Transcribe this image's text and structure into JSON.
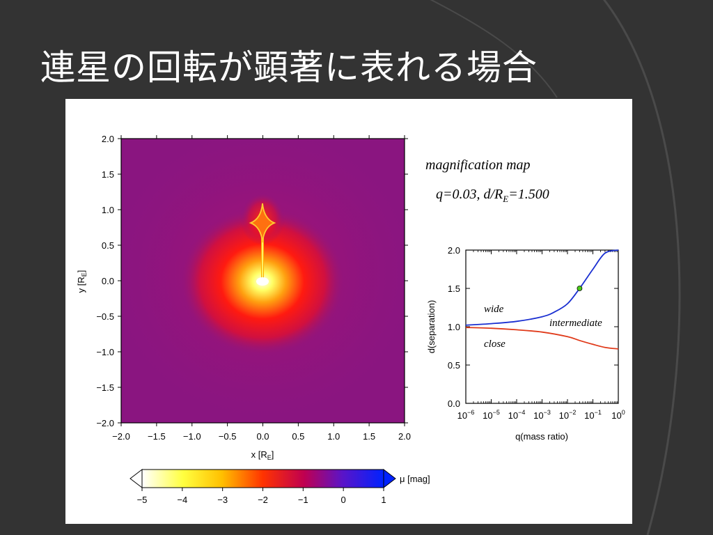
{
  "slide": {
    "title": "連星の回転が顕著に表れる場合",
    "colors": {
      "background": "#333333",
      "arc": "#4a4a4a",
      "panel": "#ffffff"
    }
  },
  "chart_data": [
    {
      "type": "heatmap",
      "xlabel_main": "x [R",
      "xlabel_sub": "E",
      "xlabel_close": "]",
      "ylabel_main": "y [R",
      "ylabel_sub": "E",
      "ylabel_close": "]",
      "xlim": [
        -2.0,
        2.0
      ],
      "ylim": [
        -2.0,
        2.0
      ],
      "xticks": [
        -2.0,
        -1.5,
        -1.0,
        -0.5,
        0.0,
        0.5,
        1.0,
        1.5,
        2.0
      ],
      "yticks": [
        -2.0,
        -1.5,
        -1.0,
        -0.5,
        0.0,
        0.5,
        1.0,
        1.5,
        2.0
      ],
      "xtick_labels": [
        "−2.0",
        "−1.5",
        "−1.0",
        "−0.5",
        "0.0",
        "0.5",
        "1.0",
        "1.5",
        "2.0"
      ],
      "ytick_labels": [
        "−2.0",
        "−1.5",
        "−1.0",
        "−0.5",
        "0.0",
        "0.5",
        "1.0",
        "1.5",
        "2.0"
      ],
      "annotations": [
        "magnification map"
      ],
      "params_prefix": "q=0.03, d/R",
      "params_sub": "E",
      "params_suffix": "=1.500",
      "features": {
        "central_peak": {
          "x": 0.0,
          "y": 0.0
        },
        "planetary_caustic_center": {
          "x": 0.0,
          "y": 0.83
        },
        "connecting_ridge": {
          "x": 0.0,
          "y_from": 0.0,
          "y_to": 0.78
        }
      },
      "colorbar": {
        "label": "μ [mag]",
        "range": [
          -5,
          1
        ],
        "ticks": [
          -5,
          -4,
          -3,
          -2,
          -1,
          0,
          1
        ],
        "tick_labels": [
          "−5",
          "−4",
          "−3",
          "−2",
          "−1",
          "0",
          "1"
        ],
        "colors": [
          "#ffffff",
          "#ffff00",
          "#ff8800",
          "#ff0000",
          "#b00066",
          "#3300dd",
          "#0022ff"
        ],
        "background_color": "#8a1580"
      }
    },
    {
      "type": "line",
      "xlabel": "q(mass ratio)",
      "ylabel": "d(separation)",
      "x_scale": "log",
      "xlim": [
        1e-06,
        1
      ],
      "ylim": [
        0.0,
        2.0
      ],
      "xticks": [
        -6,
        -5,
        -4,
        -3,
        -2,
        -1,
        0
      ],
      "yticks": [
        0.0,
        0.5,
        1.0,
        1.5,
        2.0
      ],
      "ytick_labels": [
        "0.0",
        "0.5",
        "1.0",
        "1.5",
        "2.0"
      ],
      "xtick_base": "10",
      "xtick_exps": [
        "−6",
        "−5",
        "−4",
        "−3",
        "−2",
        "−1",
        "0"
      ],
      "region_labels": [
        "wide",
        "intermediate",
        "close"
      ],
      "series": [
        {
          "color": "#1a2fd1",
          "x": [
            1e-06,
            1e-05,
            0.0001,
            0.001,
            0.003,
            0.01,
            0.03,
            0.1,
            0.3,
            1
          ],
          "y": [
            1.02,
            1.04,
            1.07,
            1.13,
            1.19,
            1.3,
            1.5,
            1.75,
            1.96,
            2.0
          ]
        },
        {
          "color": "#e03a1a",
          "x": [
            1e-06,
            1e-05,
            0.0001,
            0.001,
            0.01,
            0.03,
            0.1,
            0.3,
            1
          ],
          "y": [
            0.99,
            0.98,
            0.96,
            0.93,
            0.87,
            0.82,
            0.77,
            0.73,
            0.71
          ]
        }
      ],
      "marker": {
        "x": 0.03,
        "y": 1.5,
        "color": "#4ccc1a"
      }
    }
  ]
}
